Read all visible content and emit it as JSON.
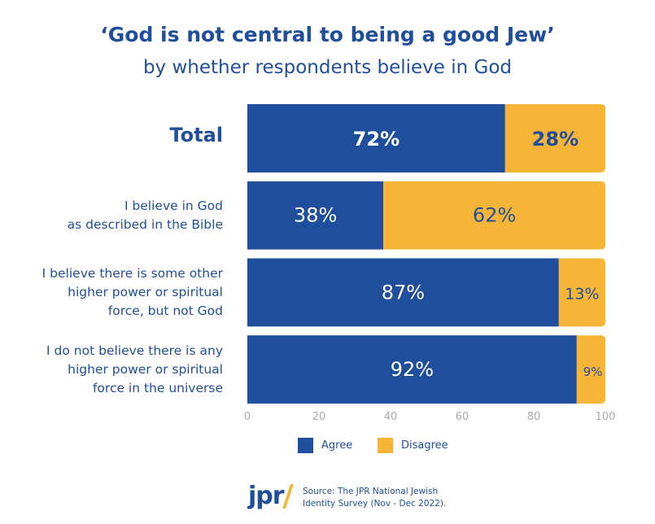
{
  "chart_data": {
    "type": "bar",
    "orientation": "horizontal",
    "stacked": true,
    "title": "‘God is not central to being a good Jew’",
    "subtitle": "by whether respondents believe in God",
    "categories": [
      "Total",
      "I believe in God\nas described in the Bible",
      "I believe there is some other\nhigher power or spiritual\nforce, but not God",
      "I do not believe there is any\nhigher power or spiritual\nforce in the universe"
    ],
    "series": [
      {
        "name": "Agree",
        "color": "#1f4e9c",
        "values": [
          72,
          38,
          87,
          92
        ],
        "labels": [
          "72%",
          "38%",
          "87%",
          "92%"
        ]
      },
      {
        "name": "Disagree",
        "color": "#f7b538",
        "values": [
          28,
          62,
          13,
          9
        ],
        "labels": [
          "28%",
          "62%",
          "13%",
          "9%"
        ]
      }
    ],
    "xlim": [
      0,
      100
    ],
    "xticks": [
      "0",
      "20",
      "40",
      "60",
      "80",
      "100"
    ],
    "grid": false,
    "legend": "bottom"
  },
  "footer": {
    "logo": "jpr",
    "source": "Source: The JPR National Jewish\nIdentity Survey (Nov - Dec 2022)."
  }
}
